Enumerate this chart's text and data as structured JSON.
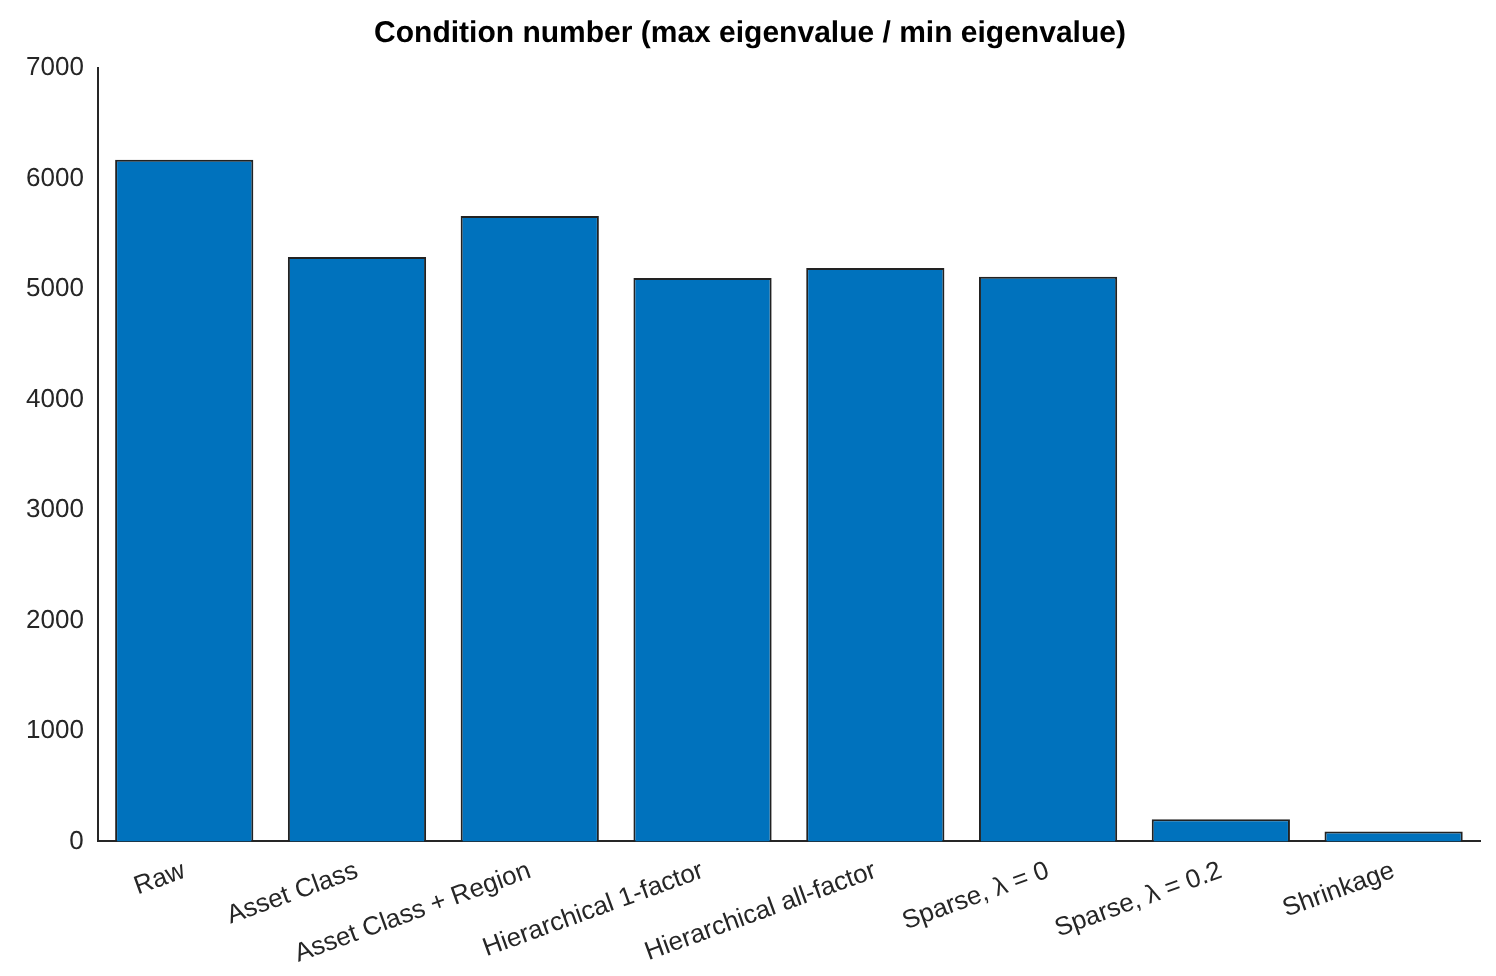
{
  "chart_data": {
    "type": "bar",
    "title": "Condition number (max eigenvalue / min eigenvalue)",
    "categories": [
      "Raw",
      "Asset Class",
      "Asset Class + Region",
      "Hierarchical 1-factor",
      "Hierarchical all-factor",
      "Sparse, λ = 0",
      "Sparse, λ = 0.2",
      "Shrinkage"
    ],
    "values": [
      6170,
      5290,
      5660,
      5100,
      5190,
      5110,
      200,
      90
    ],
    "color": "#0072bd",
    "ylim": [
      0,
      7000
    ],
    "yticks": [
      0,
      1000,
      2000,
      3000,
      4000,
      5000,
      6000,
      7000
    ],
    "grid": false,
    "legend": false
  }
}
